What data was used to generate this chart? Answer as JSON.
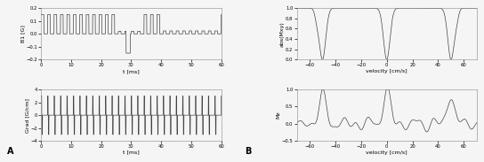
{
  "fig_width": 5.44,
  "fig_height": 1.83,
  "dpi": 100,
  "panel_A_label": "A",
  "panel_B_label": "B",
  "subplot1": {
    "ylabel": "B1 [G]",
    "xlabel": "t [ms]",
    "xlim": [
      0,
      60
    ],
    "ylim": [
      -0.2,
      0.2
    ],
    "yticks": [
      -0.2,
      -0.1,
      0,
      0.1,
      0.2
    ],
    "xticks": [
      0,
      10,
      20,
      30,
      40,
      50,
      60
    ]
  },
  "subplot2": {
    "ylabel": "Grad [G/cm]",
    "xlabel": "t [ms]",
    "xlim": [
      0,
      60
    ],
    "ylim": [
      -4,
      4
    ],
    "yticks": [
      -4,
      -2,
      0,
      2,
      4
    ],
    "xticks": [
      0,
      10,
      20,
      30,
      40,
      50,
      60
    ]
  },
  "subplot3": {
    "ylabel": "abs(Mxy)",
    "xlabel": "velocity [cm/s]",
    "xlim": [
      -70,
      70
    ],
    "ylim": [
      0,
      1
    ],
    "yticks": [
      0,
      0.2,
      0.4,
      0.6,
      0.8,
      1.0
    ],
    "xticks": [
      -60,
      -40,
      -20,
      0,
      20,
      40,
      60
    ]
  },
  "subplot4": {
    "ylabel": "Mz",
    "xlabel": "velocity [cm/s]",
    "xlim": [
      -70,
      70
    ],
    "ylim": [
      -0.5,
      1
    ],
    "yticks": [
      -0.5,
      0,
      0.5,
      1
    ],
    "xticks": [
      -60,
      -40,
      -20,
      0,
      20,
      40,
      60
    ]
  },
  "line_color": "#444444",
  "line_width": 0.5,
  "background_color": "#f5f5f5",
  "label_fontsize": 4.5,
  "tick_fontsize": 3.8
}
